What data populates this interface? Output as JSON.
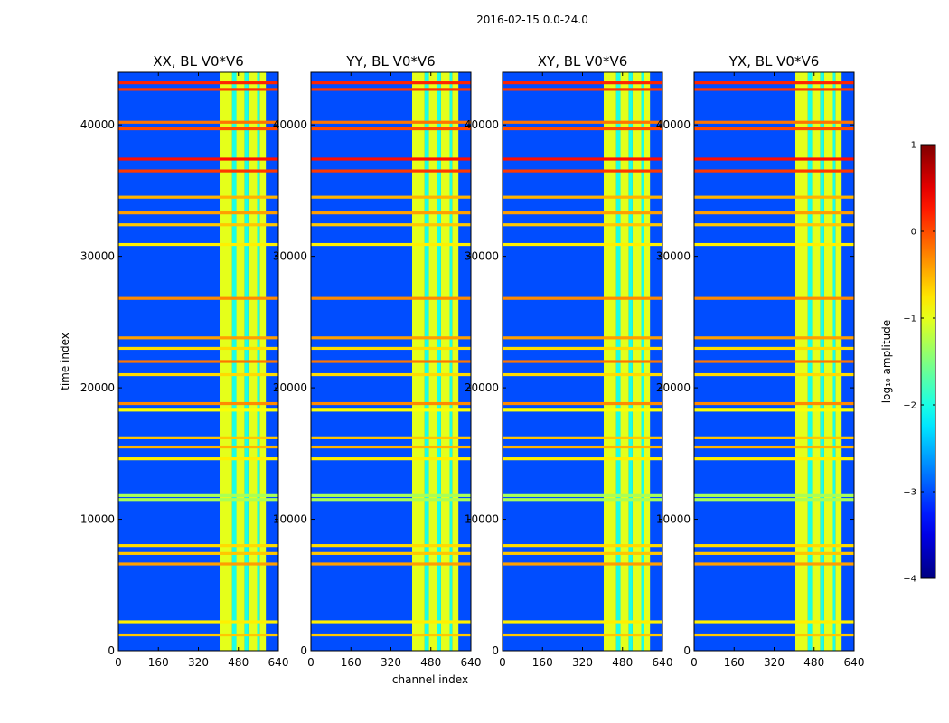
{
  "figure": {
    "suptitle": "2016-02-15 0.0-24.0"
  },
  "chart_data": {
    "type": "heatmap",
    "panels": [
      {
        "title": "XX, BL V0*V6"
      },
      {
        "title": "YY, BL V0*V6"
      },
      {
        "title": "XY, BL V0*V6"
      },
      {
        "title": "YX, BL V0*V6"
      }
    ],
    "xlabel": "channel index",
    "ylabel": "time index",
    "xlim": [
      0,
      640
    ],
    "ylim": [
      0,
      44000
    ],
    "xticks": [
      0,
      160,
      320,
      480,
      640
    ],
    "yticks": [
      0,
      10000,
      20000,
      30000,
      40000
    ],
    "ytick_labels": [
      "0",
      "10000",
      "20000",
      "30000",
      "40000"
    ],
    "colorbar": {
      "label": "log₁₀ amplitude",
      "range": [
        -4,
        1
      ],
      "ticks": [
        -4,
        -3,
        -2,
        -1,
        0,
        1
      ],
      "tick_labels": [
        "−4",
        "−3",
        "−2",
        "−1",
        "0",
        "1"
      ],
      "colormap": "jet"
    },
    "signal_band_channels": [
      405,
      590
    ],
    "signal_band_column_edges": [
      405,
      455,
      472,
      505,
      520,
      555,
      565,
      590
    ],
    "rfi_time_rows": [
      {
        "t": 43200,
        "level": 0.2
      },
      {
        "t": 42700,
        "level": 0.1
      },
      {
        "t": 40200,
        "level": -0.2
      },
      {
        "t": 39700,
        "level": 0.0
      },
      {
        "t": 37400,
        "level": 0.3
      },
      {
        "t": 36500,
        "level": 0.1
      },
      {
        "t": 34500,
        "level": -0.5
      },
      {
        "t": 33300,
        "level": -0.4
      },
      {
        "t": 32400,
        "level": -0.6
      },
      {
        "t": 30900,
        "level": -0.8
      },
      {
        "t": 26800,
        "level": -0.3
      },
      {
        "t": 23800,
        "level": -0.4
      },
      {
        "t": 23000,
        "level": -0.7
      },
      {
        "t": 22000,
        "level": -0.2
      },
      {
        "t": 21000,
        "level": -0.7
      },
      {
        "t": 18800,
        "level": -0.3
      },
      {
        "t": 18300,
        "level": -0.9
      },
      {
        "t": 16200,
        "level": -0.6
      },
      {
        "t": 15500,
        "level": -0.5
      },
      {
        "t": 14600,
        "level": -0.8
      },
      {
        "t": 11800,
        "level": -1.3
      },
      {
        "t": 11500,
        "level": -1.3
      },
      {
        "t": 8000,
        "level": -0.7
      },
      {
        "t": 7400,
        "level": -0.6
      },
      {
        "t": 6600,
        "level": -0.4
      },
      {
        "t": 2200,
        "level": -0.8
      },
      {
        "t": 1200,
        "level": -0.6
      }
    ],
    "background_level": -3.0
  }
}
